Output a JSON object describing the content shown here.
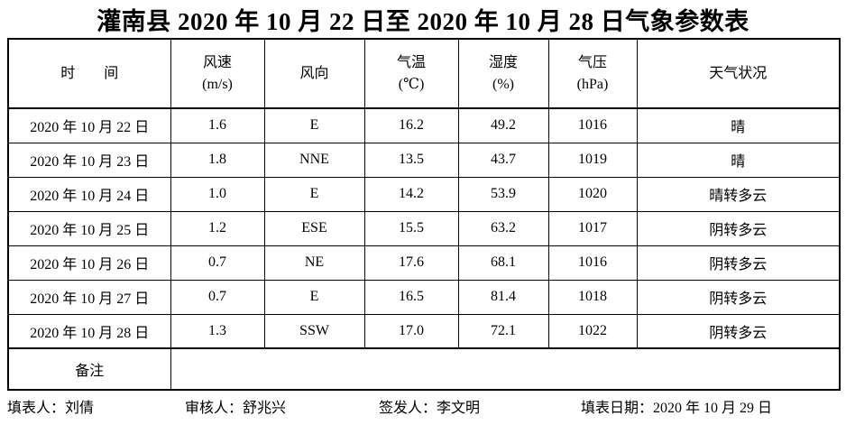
{
  "title": "灌南县 2020 年 10 月 22 日至 2020 年 10 月 28 日气象参数表",
  "table": {
    "headers": {
      "time": {
        "label": "时　　间",
        "sub": ""
      },
      "wind_speed": {
        "label": "风速",
        "sub": "(m/s)"
      },
      "wind_dir": {
        "label": "风向",
        "sub": ""
      },
      "temp": {
        "label": "气温",
        "sub": "(℃)"
      },
      "humidity": {
        "label": "湿度",
        "sub": "(%)"
      },
      "pressure": {
        "label": "气压",
        "sub": "(hPa)"
      },
      "weather": {
        "label": "天气状况",
        "sub": ""
      }
    },
    "rows": [
      {
        "date": "2020 年 10 月 22 日",
        "wind_speed": "1.6",
        "wind_dir": "E",
        "temp": "16.2",
        "humidity": "49.2",
        "pressure": "1016",
        "weather": "晴"
      },
      {
        "date": "2020 年 10 月 23 日",
        "wind_speed": "1.8",
        "wind_dir": "NNE",
        "temp": "13.5",
        "humidity": "43.7",
        "pressure": "1019",
        "weather": "晴"
      },
      {
        "date": "2020 年 10 月 24 日",
        "wind_speed": "1.0",
        "wind_dir": "E",
        "temp": "14.2",
        "humidity": "53.9",
        "pressure": "1020",
        "weather": "晴转多云"
      },
      {
        "date": "2020 年 10 月 25 日",
        "wind_speed": "1.2",
        "wind_dir": "ESE",
        "temp": "15.5",
        "humidity": "63.2",
        "pressure": "1017",
        "weather": "阴转多云"
      },
      {
        "date": "2020 年 10 月 26 日",
        "wind_speed": "0.7",
        "wind_dir": "NE",
        "temp": "17.6",
        "humidity": "68.1",
        "pressure": "1016",
        "weather": "阴转多云"
      },
      {
        "date": "2020 年 10 月 27 日",
        "wind_speed": "0.7",
        "wind_dir": "E",
        "temp": "16.5",
        "humidity": "81.4",
        "pressure": "1018",
        "weather": "阴转多云"
      },
      {
        "date": "2020 年 10 月 28 日",
        "wind_speed": "1.3",
        "wind_dir": "SSW",
        "temp": "17.0",
        "humidity": "72.1",
        "pressure": "1022",
        "weather": "阴转多云"
      }
    ],
    "remarks_label": "备注",
    "remarks_value": ""
  },
  "footer": {
    "filled_by": "填表人：刘倩",
    "reviewed_by": "审核人：舒兆兴",
    "issued_by": "签发人：李文明",
    "fill_date": "填表日期：2020 年 10 月 29 日"
  },
  "colors": {
    "text": "#000000",
    "border": "#000000",
    "background": "#ffffff"
  }
}
